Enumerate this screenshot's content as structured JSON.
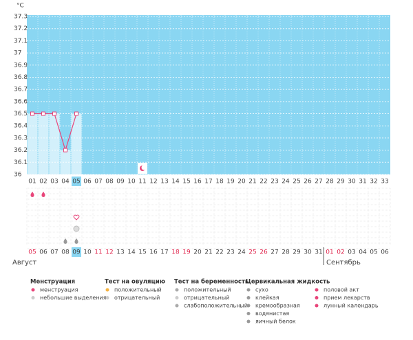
{
  "chart_data": {
    "type": "line",
    "y_label": "°C",
    "categories": [
      "01",
      "02",
      "03",
      "04",
      "05",
      "06",
      "07",
      "08",
      "09",
      "10",
      "11",
      "12",
      "13",
      "14",
      "15",
      "16",
      "17",
      "18",
      "19",
      "20",
      "21",
      "22",
      "23",
      "24",
      "25",
      "26",
      "27",
      "28",
      "29",
      "30",
      "31",
      "32",
      "33"
    ],
    "values": [
      36.5,
      36.5,
      36.5,
      36.2,
      36.5,
      null,
      null,
      null,
      null,
      null,
      null,
      null,
      null,
      null,
      null,
      null,
      null,
      null,
      null,
      null,
      null,
      null,
      null,
      null,
      null,
      null,
      null,
      null,
      null,
      null,
      null,
      null,
      null
    ],
    "color": "#e8457a",
    "background": "#8ad6f2",
    "fill": "#d3f0fb",
    "ylim": [
      36,
      37.3
    ],
    "yticks": [
      36,
      36.1,
      36.2,
      36.3,
      36.4,
      36.5,
      36.6,
      36.7,
      36.8,
      36.9,
      {
        "value": 37,
        "label": "37"
      },
      37.1,
      37.2,
      37.3
    ],
    "grid": true
  },
  "calendar": {
    "dates": [
      {
        "label": "05",
        "red": true
      },
      {
        "label": "06"
      },
      {
        "label": "07"
      },
      {
        "label": "08"
      },
      {
        "label": "09",
        "today": true
      },
      {
        "label": "10"
      },
      {
        "label": "11",
        "red": true
      },
      {
        "label": "12",
        "red": true
      },
      {
        "label": "13"
      },
      {
        "label": "14"
      },
      {
        "label": "15"
      },
      {
        "label": "16"
      },
      {
        "label": "17"
      },
      {
        "label": "18",
        "red": true
      },
      {
        "label": "19",
        "red": true
      },
      {
        "label": "20"
      },
      {
        "label": "21"
      },
      {
        "label": "22"
      },
      {
        "label": "23"
      },
      {
        "label": "24"
      },
      {
        "label": "25",
        "red": true
      },
      {
        "label": "26",
        "red": true
      },
      {
        "label": "27"
      },
      {
        "label": "28"
      },
      {
        "label": "29"
      },
      {
        "label": "30"
      },
      {
        "label": "31"
      },
      {
        "label": "01",
        "red": true
      },
      {
        "label": "02",
        "red": true
      },
      {
        "label": "03"
      },
      {
        "label": "04"
      },
      {
        "label": "05"
      },
      {
        "label": "06"
      }
    ],
    "months": [
      "Август",
      "Сентябрь"
    ]
  },
  "legend": [
    {
      "title": "Менструация",
      "items": [
        "менструация",
        "небольшие выделения"
      ]
    },
    {
      "title": "Тест на овуляцию",
      "items": [
        "положительный",
        "отрицательный"
      ]
    },
    {
      "title": "Тест на беременность",
      "items": [
        "положительный",
        "отрицательный",
        "слабоположительный"
      ]
    },
    {
      "title": "Цервикальная жидкость",
      "items": [
        "сухо",
        "клейкая",
        "кремообразная",
        "водянистая",
        "яичный белок"
      ]
    },
    {
      "items": [
        "половой акт",
        "прием лекарств",
        "лунный календарь"
      ]
    }
  ]
}
